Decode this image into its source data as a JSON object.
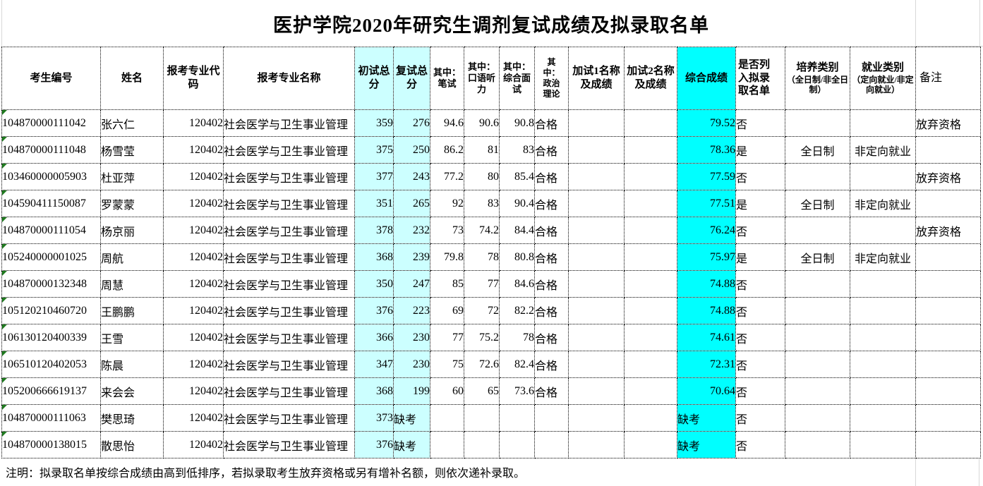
{
  "title": "医护学院2020年研究生调剂复试成绩及拟录取名单",
  "columns": [
    {
      "key": "candidate-id",
      "label": "考生编号"
    },
    {
      "key": "name",
      "label": "姓名"
    },
    {
      "key": "major-code",
      "label": "报考专业代码"
    },
    {
      "key": "major-name",
      "label": "报考专业名称"
    },
    {
      "key": "initial-total",
      "label": "初试总分"
    },
    {
      "key": "retest-total",
      "label": "复试总分"
    },
    {
      "key": "written",
      "label": "其中：笔试"
    },
    {
      "key": "oral-listening",
      "label": "其中：口语听力"
    },
    {
      "key": "interview",
      "label": "其中：综合面试"
    },
    {
      "key": "politics",
      "label": "其中：政治理论"
    },
    {
      "key": "extra-test-1",
      "label": "加试1名称及成绩"
    },
    {
      "key": "extra-test-2",
      "label": "加试2名称及成绩"
    },
    {
      "key": "composite-score",
      "label": "综合成绩"
    },
    {
      "key": "admitted",
      "label": "是否列入拟录取名单"
    },
    {
      "key": "training-type",
      "label": "培养类别",
      "sub": "（全日制/非全日制）"
    },
    {
      "key": "employment-type",
      "label": "就业类别",
      "sub": "（定向就业/非定向就业）"
    },
    {
      "key": "remarks",
      "label": "备注"
    }
  ],
  "rows": [
    [
      "104870000111042",
      "张六仁",
      "120402",
      "社会医学与卫生事业管理",
      "359",
      "276",
      "94.6",
      "90.6",
      "90.8",
      "合格",
      "",
      "",
      "79.52",
      "否",
      "",
      "",
      "放弃资格"
    ],
    [
      "104870000111048",
      "杨雪莹",
      "120402",
      "社会医学与卫生事业管理",
      "375",
      "250",
      "86.2",
      "81",
      "83",
      "合格",
      "",
      "",
      "78.36",
      "是",
      "全日制",
      "非定向就业",
      ""
    ],
    [
      "103460000005903",
      "杜亚萍",
      "120402",
      "社会医学与卫生事业管理",
      "377",
      "243",
      "77.2",
      "80",
      "85.4",
      "合格",
      "",
      "",
      "77.59",
      "否",
      "",
      "",
      "放弃资格"
    ],
    [
      "104590411150087",
      "罗蒙蒙",
      "120402",
      "社会医学与卫生事业管理",
      "351",
      "265",
      "92",
      "83",
      "90.4",
      "合格",
      "",
      "",
      "77.51",
      "是",
      "全日制",
      "非定向就业",
      ""
    ],
    [
      "104870000111054",
      "杨京丽",
      "120402",
      "社会医学与卫生事业管理",
      "378",
      "232",
      "73",
      "74.2",
      "84.4",
      "合格",
      "",
      "",
      "76.24",
      "否",
      "",
      "",
      "放弃资格"
    ],
    [
      "105240000001025",
      "周航",
      "120402",
      "社会医学与卫生事业管理",
      "368",
      "239",
      "79.8",
      "78",
      "80.8",
      "合格",
      "",
      "",
      "75.97",
      "是",
      "全日制",
      "非定向就业",
      ""
    ],
    [
      "104870000132348",
      "周慧",
      "120402",
      "社会医学与卫生事业管理",
      "350",
      "247",
      "85",
      "77",
      "84.6",
      "合格",
      "",
      "",
      "74.88",
      "否",
      "",
      "",
      ""
    ],
    [
      "105120210460720",
      "王鹏鹏",
      "120402",
      "社会医学与卫生事业管理",
      "376",
      "223",
      "69",
      "72",
      "82.2",
      "合格",
      "",
      "",
      "74.88",
      "否",
      "",
      "",
      ""
    ],
    [
      "106130120400339",
      "王雪",
      "120402",
      "社会医学与卫生事业管理",
      "366",
      "230",
      "77",
      "75.2",
      "78",
      "合格",
      "",
      "",
      "74.61",
      "否",
      "",
      "",
      ""
    ],
    [
      "106510120402053",
      "陈晨",
      "120402",
      "社会医学与卫生事业管理",
      "347",
      "230",
      "75",
      "72.6",
      "82.4",
      "合格",
      "",
      "",
      "72.31",
      "否",
      "",
      "",
      ""
    ],
    [
      "105200666619137",
      "来会会",
      "120402",
      "社会医学与卫生事业管理",
      "368",
      "199",
      "60",
      "65",
      "73.6",
      "合格",
      "",
      "",
      "70.64",
      "否",
      "",
      "",
      ""
    ],
    [
      "104870000111063",
      "樊思琦",
      "120402",
      "社会医学与卫生事业管理",
      "373",
      "缺考",
      "",
      "",
      "",
      "",
      "",
      "",
      "缺考",
      "否",
      "",
      "",
      ""
    ],
    [
      "104870000138015",
      "散思怡",
      "120402",
      "社会医学与卫生事业管理",
      "376",
      "缺考",
      "",
      "",
      "",
      "",
      "",
      "",
      "缺考",
      "否",
      "",
      "",
      ""
    ]
  ],
  "footer_note": "注明：拟录取名单按综合成绩由高到低排序，若拟录取考生放弃资格或另有增补名额，则依次递补录取。",
  "colors": {
    "highlight_light_cyan": "#CCFFFF",
    "highlight_bright_cyan": "#00FFFF",
    "error_flag_green": "#1F7A1F",
    "gridline_gray": "#D8D8D8"
  }
}
